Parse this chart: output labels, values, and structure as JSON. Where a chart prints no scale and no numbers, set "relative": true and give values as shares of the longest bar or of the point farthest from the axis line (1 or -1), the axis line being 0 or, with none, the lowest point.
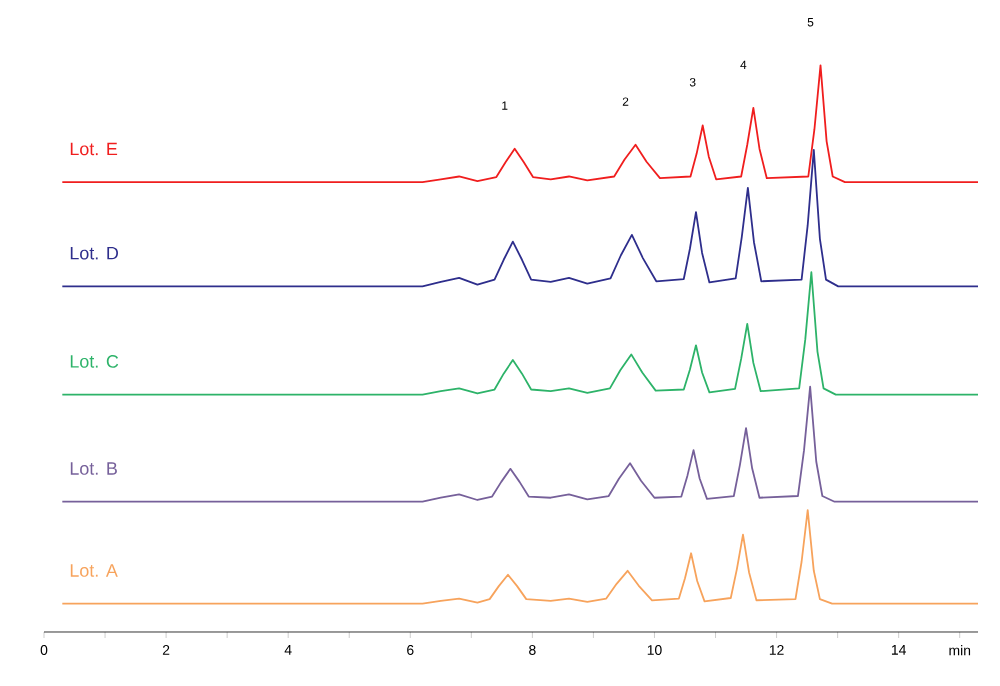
{
  "chart_data": {
    "type": "line",
    "relative": true,
    "xlabel": "min",
    "xlim": [
      0,
      15.3
    ],
    "xticks": [
      0,
      {
        "value": 1,
        "label": null
      },
      2,
      {
        "value": 3,
        "label": null
      },
      4,
      {
        "value": 5,
        "label": null
      },
      6,
      {
        "value": 7,
        "label": null
      },
      8,
      {
        "value": 9,
        "label": null
      },
      10,
      {
        "value": 11,
        "label": null
      },
      12,
      {
        "value": 13,
        "label": null
      },
      14,
      {
        "value": 15,
        "label": null
      }
    ],
    "grid": false,
    "annotations": [
      "1",
      "2",
      "3",
      "4",
      "5"
    ],
    "series": [
      {
        "name": "Lot. E",
        "color": "#f01e1e",
        "x": [
          0.3,
          6.2,
          6.5,
          6.8,
          7.1,
          7.41,
          7.56,
          7.71,
          7.86,
          8.01,
          8.3,
          8.6,
          8.9,
          9.34,
          9.51,
          9.69,
          9.87,
          10.09,
          10.59,
          10.69,
          10.79,
          10.89,
          11.01,
          11.42,
          11.52,
          11.62,
          11.72,
          11.84,
          12.52,
          12.62,
          12.72,
          12.82,
          12.92,
          13.12,
          15.3
        ],
        "values": [
          0.794,
          0.794,
          0.799,
          0.804,
          0.796,
          0.803,
          0.829,
          0.853,
          0.829,
          0.803,
          0.799,
          0.804,
          0.797,
          0.804,
          0.834,
          0.86,
          0.83,
          0.801,
          0.804,
          0.844,
          0.894,
          0.839,
          0.799,
          0.804,
          0.86,
          0.925,
          0.853,
          0.801,
          0.804,
          0.887,
          1.0,
          0.866,
          0.804,
          0.794,
          0.794
        ]
      },
      {
        "name": "Lot. D",
        "color": "#2e2e8c",
        "x": [
          0.3,
          6.2,
          6.5,
          6.8,
          7.1,
          7.38,
          7.53,
          7.68,
          7.83,
          7.98,
          8.3,
          8.6,
          8.9,
          9.28,
          9.45,
          9.63,
          9.81,
          10.03,
          10.48,
          10.58,
          10.68,
          10.78,
          10.9,
          11.33,
          11.43,
          11.53,
          11.63,
          11.75,
          12.41,
          12.51,
          12.61,
          12.71,
          12.81,
          13.01,
          15.3
        ],
        "values": [
          0.61,
          0.61,
          0.618,
          0.625,
          0.613,
          0.622,
          0.657,
          0.689,
          0.657,
          0.622,
          0.618,
          0.625,
          0.615,
          0.624,
          0.665,
          0.701,
          0.66,
          0.619,
          0.623,
          0.676,
          0.741,
          0.669,
          0.617,
          0.624,
          0.697,
          0.784,
          0.688,
          0.619,
          0.622,
          0.718,
          0.851,
          0.694,
          0.622,
          0.61,
          0.61
        ]
      },
      {
        "name": "Lot. C",
        "color": "#2db369",
        "x": [
          0.3,
          6.2,
          6.5,
          6.8,
          7.1,
          7.38,
          7.53,
          7.68,
          7.83,
          7.98,
          8.3,
          8.6,
          8.9,
          9.27,
          9.44,
          9.62,
          9.8,
          10.02,
          10.48,
          10.58,
          10.68,
          10.78,
          10.9,
          11.32,
          11.42,
          11.52,
          11.62,
          11.74,
          12.37,
          12.47,
          12.57,
          12.67,
          12.77,
          12.97,
          15.3
        ],
        "values": [
          0.419,
          0.419,
          0.425,
          0.43,
          0.421,
          0.428,
          0.456,
          0.48,
          0.456,
          0.428,
          0.425,
          0.43,
          0.422,
          0.43,
          0.462,
          0.49,
          0.458,
          0.426,
          0.428,
          0.463,
          0.506,
          0.458,
          0.423,
          0.429,
          0.482,
          0.544,
          0.475,
          0.425,
          0.43,
          0.516,
          0.635,
          0.495,
          0.43,
          0.419,
          0.419
        ]
      },
      {
        "name": "Lot. B",
        "color": "#76609a",
        "x": [
          0.3,
          6.2,
          6.5,
          6.8,
          7.1,
          7.34,
          7.49,
          7.64,
          7.79,
          7.94,
          8.3,
          8.6,
          8.9,
          9.25,
          9.42,
          9.6,
          9.78,
          10.0,
          10.44,
          10.54,
          10.64,
          10.74,
          10.86,
          11.3,
          11.4,
          11.5,
          11.6,
          11.72,
          12.35,
          12.45,
          12.55,
          12.65,
          12.75,
          12.95,
          15.3
        ],
        "values": [
          0.23,
          0.23,
          0.237,
          0.243,
          0.233,
          0.239,
          0.265,
          0.288,
          0.265,
          0.239,
          0.237,
          0.243,
          0.234,
          0.24,
          0.271,
          0.298,
          0.267,
          0.237,
          0.239,
          0.276,
          0.321,
          0.271,
          0.235,
          0.24,
          0.295,
          0.36,
          0.289,
          0.237,
          0.24,
          0.321,
          0.433,
          0.301,
          0.24,
          0.23,
          0.23
        ]
      },
      {
        "name": "Lot. A",
        "color": "#f7a35c",
        "x": [
          0.3,
          6.2,
          6.5,
          6.8,
          7.1,
          7.3,
          7.45,
          7.6,
          7.75,
          7.9,
          8.3,
          8.6,
          8.9,
          9.21,
          9.38,
          9.56,
          9.74,
          9.96,
          10.4,
          10.5,
          10.6,
          10.7,
          10.82,
          11.25,
          11.35,
          11.45,
          11.55,
          11.67,
          12.31,
          12.41,
          12.51,
          12.61,
          12.71,
          12.91,
          15.3
        ],
        "values": [
          0.05,
          0.05,
          0.055,
          0.059,
          0.052,
          0.058,
          0.081,
          0.101,
          0.081,
          0.058,
          0.055,
          0.059,
          0.053,
          0.059,
          0.085,
          0.108,
          0.082,
          0.056,
          0.059,
          0.095,
          0.139,
          0.09,
          0.054,
          0.06,
          0.111,
          0.172,
          0.105,
          0.056,
          0.058,
          0.124,
          0.215,
          0.108,
          0.058,
          0.05,
          0.05
        ]
      }
    ]
  }
}
